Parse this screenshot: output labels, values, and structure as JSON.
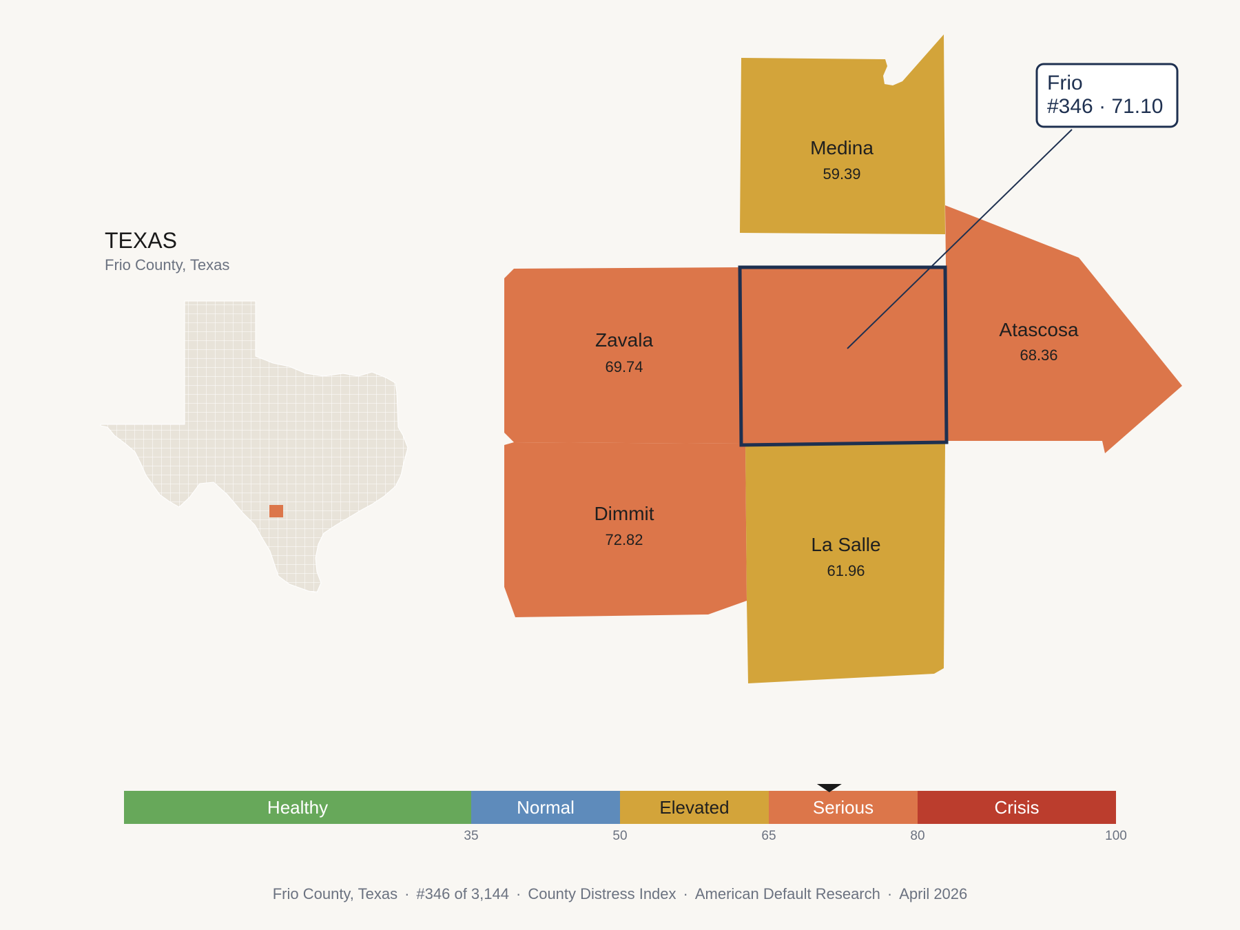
{
  "state": {
    "title": "TEXAS",
    "subtitle": "Frio County, Texas"
  },
  "colors": {
    "background": "#f9f7f3",
    "healthy": "#67a85a",
    "normal": "#5e8bbb",
    "elevated": "#d3a43a",
    "serious": "#dc764a",
    "crisis": "#bb3d2d",
    "state_fill": "#e8e3d9",
    "highlight_border": "#1e3050"
  },
  "counties": [
    {
      "name": "Medina",
      "score": "59.39",
      "category": "elevated"
    },
    {
      "name": "Zavala",
      "score": "69.74",
      "category": "serious"
    },
    {
      "name": "Atascosa",
      "score": "68.36",
      "category": "serious"
    },
    {
      "name": "Dimmit",
      "score": "72.82",
      "category": "serious"
    },
    {
      "name": "La Salle",
      "score": "61.96",
      "category": "elevated"
    },
    {
      "name": "Frio",
      "score": "",
      "category": "serious",
      "highlighted": true
    }
  ],
  "callout": {
    "line1": "Frio",
    "line2": "#346 · 71.10"
  },
  "legend": {
    "segments": [
      {
        "label": "Healthy",
        "from": 0,
        "to": 35,
        "color": "#67a85a",
        "text_color": "#ffffff"
      },
      {
        "label": "Normal",
        "from": 35,
        "to": 50,
        "color": "#5e8bbb",
        "text_color": "#ffffff"
      },
      {
        "label": "Elevated",
        "from": 50,
        "to": 65,
        "color": "#d3a43a",
        "text_color": "#1f1f1f"
      },
      {
        "label": "Serious",
        "from": 65,
        "to": 80,
        "color": "#dc764a",
        "text_color": "#ffffff"
      },
      {
        "label": "Crisis",
        "from": 80,
        "to": 100,
        "color": "#bb3d2d",
        "text_color": "#ffffff"
      }
    ],
    "ticks": [
      "35",
      "50",
      "65",
      "80",
      "100"
    ],
    "marker_value": 71.1
  },
  "footer": {
    "location": "Frio County, Texas",
    "rank": "#346 of 3,144",
    "index": "County Distress Index",
    "org": "American Default Research",
    "date": "April 2026"
  }
}
